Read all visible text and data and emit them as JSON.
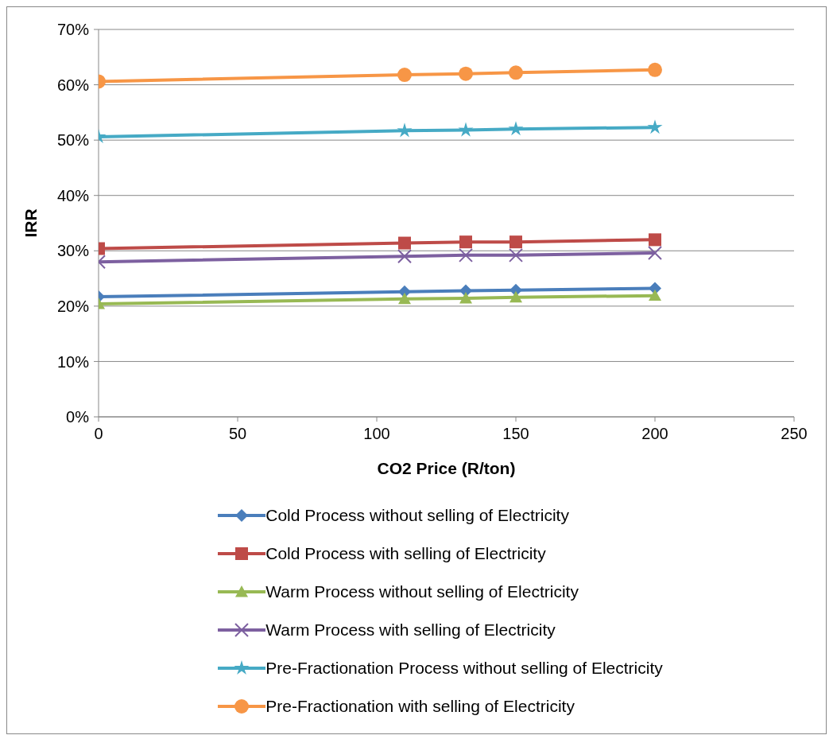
{
  "chart_data": {
    "type": "line",
    "xlabel": "CO2 Price (R/ton)",
    "ylabel": "IRR",
    "x": [
      0,
      110,
      132,
      150,
      200
    ],
    "xlim": [
      0,
      250
    ],
    "xticks": [
      0,
      50,
      100,
      150,
      200,
      250
    ],
    "ylim": [
      0,
      70
    ],
    "yticks": [
      {
        "value": 0,
        "label": "0%"
      },
      {
        "value": 10,
        "label": "10%"
      },
      {
        "value": 20,
        "label": "20%"
      },
      {
        "value": 30,
        "label": "30%"
      },
      {
        "value": 40,
        "label": "40%"
      },
      {
        "value": 50,
        "label": "50%"
      },
      {
        "value": 60,
        "label": "60%"
      },
      {
        "value": 70,
        "label": "70%"
      }
    ],
    "grid": "y",
    "legend": "bottom",
    "line_style": "solid",
    "series": [
      {
        "name": "Cold Process without selling of Electricity",
        "color": "#4a7ebb",
        "marker": "diamond",
        "values": [
          21.7,
          22.6,
          22.8,
          22.9,
          23.2
        ]
      },
      {
        "name": "Cold Process with selling of Electricity",
        "color": "#be4b48",
        "marker": "square",
        "values": [
          30.4,
          31.4,
          31.6,
          31.6,
          32.0
        ]
      },
      {
        "name": "Warm Process without selling of Electricity",
        "color": "#98b954",
        "marker": "triangle",
        "values": [
          20.4,
          21.3,
          21.4,
          21.6,
          21.9
        ]
      },
      {
        "name": "Warm Process with selling of Electricity",
        "color": "#7d60a0",
        "marker": "cross",
        "values": [
          28.0,
          29.0,
          29.2,
          29.2,
          29.6
        ]
      },
      {
        "name": "Pre-Fractionation Process without selling of Electricity",
        "color": "#46aac5",
        "marker": "star",
        "values": [
          50.6,
          51.7,
          51.8,
          52.0,
          52.3
        ]
      },
      {
        "name": "Pre-Fractionation with selling of Electricity",
        "color": "#f79646",
        "marker": "circle",
        "values": [
          60.6,
          61.8,
          62.0,
          62.2,
          62.7
        ]
      }
    ]
  }
}
